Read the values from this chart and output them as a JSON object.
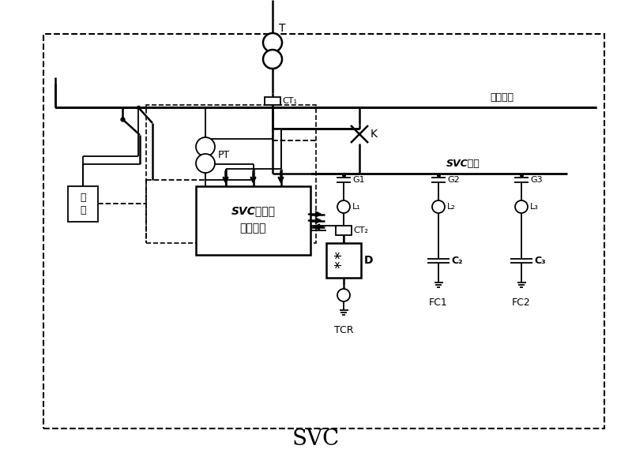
{
  "title": "SVC",
  "label_danxiang": "单相母线",
  "label_svc_busbar": "SVC母线",
  "label_svc_line1": "SVC全数字",
  "label_svc_line2": "控制系统",
  "label_fuzai_1": "负",
  "label_fuzai_2": "荷",
  "label_T": "T",
  "label_CT1": "CT₁",
  "label_PT": "PT",
  "label_K": "K",
  "label_G1": "G1",
  "label_G2": "G2",
  "label_G3": "G3",
  "label_L1": "L₁",
  "label_L2": "L₂",
  "label_L3": "L₃",
  "label_CT2": "CT₂",
  "label_D": "D",
  "label_C2": "C₂",
  "label_C3": "C₃",
  "label_TCR": "TCR",
  "label_FC1": "FC1",
  "label_FC2": "FC2",
  "bg_color": "#ffffff",
  "line_color": "#000000"
}
